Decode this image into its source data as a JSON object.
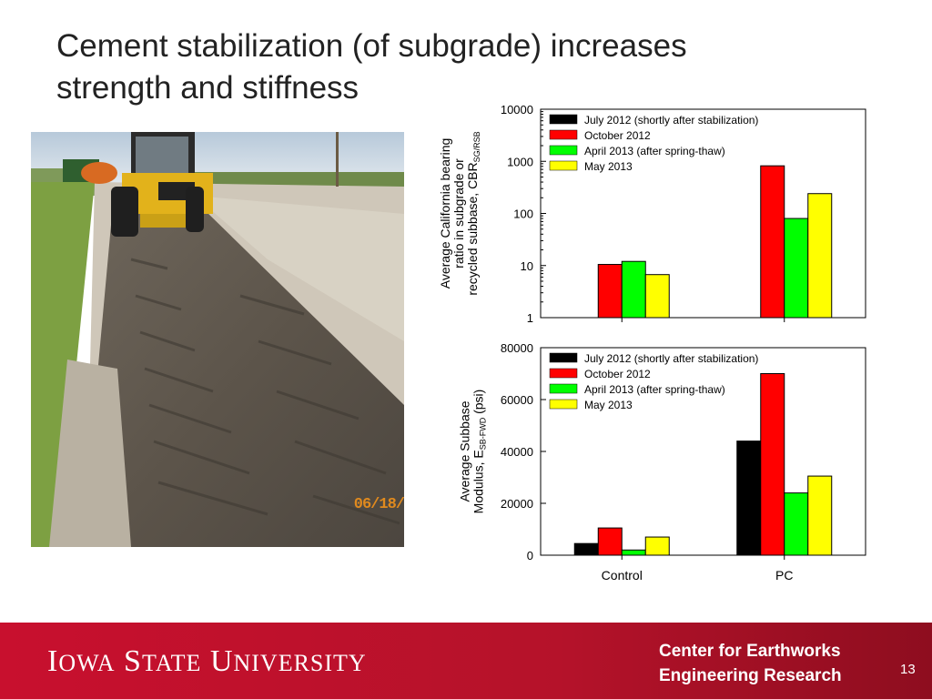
{
  "slide": {
    "title": "Cement stabilization (of subgrade) increases\nstrength and stiffness",
    "photo_stamp": "06/18/",
    "page_number": "13"
  },
  "footer": {
    "logo_word1_initial": "I",
    "logo_word1_rest": "OWA",
    "logo_word2_initial": "S",
    "logo_word2_rest": "TATE",
    "logo_word3_initial": "U",
    "logo_word3_rest": "NIVERSITY",
    "center_line1": "Center for Earthworks",
    "center_line2": "Engineering Research"
  },
  "colors": {
    "brand_red": "#c8102e",
    "series_july": "#000000",
    "series_october": "#ff0000",
    "series_april": "#00ff00",
    "series_may": "#ffff00"
  },
  "chart_data": [
    {
      "type": "bar",
      "scale": "log",
      "categories": [
        "Control",
        "PC"
      ],
      "category_labels_shown": false,
      "ylabel_lines": [
        "Average California bearing",
        "ratio in subgrade or",
        "recycled subbase, CBR"
      ],
      "ylabel_subscript": "SG/RSB",
      "ylim": [
        1,
        10000
      ],
      "yticks": [
        "1",
        "10",
        "100",
        "1000",
        "10000"
      ],
      "legend_position": "top-left",
      "series": [
        {
          "name": "July 2012 (shortly after stabilization)",
          "color": "#000000",
          "values": [
            null,
            null
          ]
        },
        {
          "name": "October 2012",
          "color": "#ff0000",
          "values": [
            10.5,
            820
          ]
        },
        {
          "name": "April 2013 (after spring-thaw)",
          "color": "#00ff00",
          "values": [
            12,
            80
          ]
        },
        {
          "name": "May 2013",
          "color": "#ffff00",
          "values": [
            6.7,
            240
          ]
        }
      ]
    },
    {
      "type": "bar",
      "scale": "linear",
      "categories": [
        "Control",
        "PC"
      ],
      "category_labels_shown": true,
      "ylabel_lines": [
        "Average Subbase",
        "Modulus, E"
      ],
      "ylabel_subscript": "SB-FWD",
      "ylabel_suffix": " (psi)",
      "ylim": [
        0,
        80000
      ],
      "yticks": [
        "0",
        "20000",
        "40000",
        "60000",
        "80000"
      ],
      "legend_position": "top-left",
      "series": [
        {
          "name": "July 2012 (shortly after stabilization)",
          "color": "#000000",
          "values": [
            4500,
            44000
          ]
        },
        {
          "name": "October 2012",
          "color": "#ff0000",
          "values": [
            10500,
            70000
          ]
        },
        {
          "name": "April 2013 (after spring-thaw)",
          "color": "#00ff00",
          "values": [
            2000,
            24000
          ]
        },
        {
          "name": "May 2013",
          "color": "#ffff00",
          "values": [
            7000,
            30500
          ]
        }
      ]
    }
  ]
}
